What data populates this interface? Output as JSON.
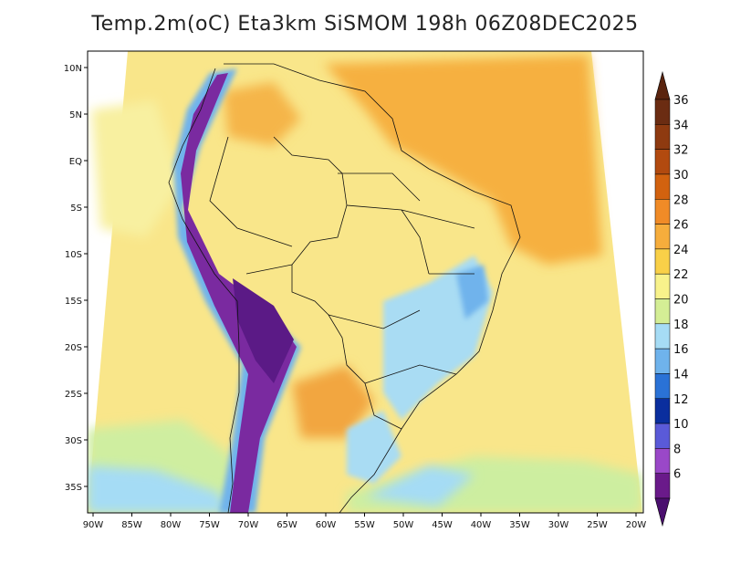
{
  "title": "Temp.2m(oC) Eta3km SiSMOM 198h 06Z08DEC2025",
  "map": {
    "lon_labels": [
      "90W",
      "85W",
      "80W",
      "75W",
      "70W",
      "65W",
      "60W",
      "55W",
      "50W",
      "45W",
      "40W",
      "35W",
      "30W",
      "25W",
      "20W"
    ],
    "lat_labels": [
      "10N",
      "5N",
      "EQ",
      "5S",
      "10S",
      "15S",
      "20S",
      "25S",
      "30S",
      "35S"
    ]
  },
  "colorbar": {
    "labels": [
      "36",
      "34",
      "32",
      "30",
      "28",
      "26",
      "24",
      "22",
      "20",
      "18",
      "16",
      "14",
      "12",
      "10",
      "8",
      "6"
    ],
    "colors": [
      "#6b2c12",
      "#8e3a10",
      "#b24a0f",
      "#d2620f",
      "#f08b27",
      "#f6ad3c",
      "#f9d048",
      "#f8f28b",
      "#d4ee95",
      "#a6dcf5",
      "#6fb3ec",
      "#2a72d6",
      "#0a2e9e",
      "#5a5ad8",
      "#9a48c8",
      "#6a1a8a"
    ],
    "top_arrow_color": "#5a240e",
    "bottom_arrow_color": "#4a0f6e"
  }
}
